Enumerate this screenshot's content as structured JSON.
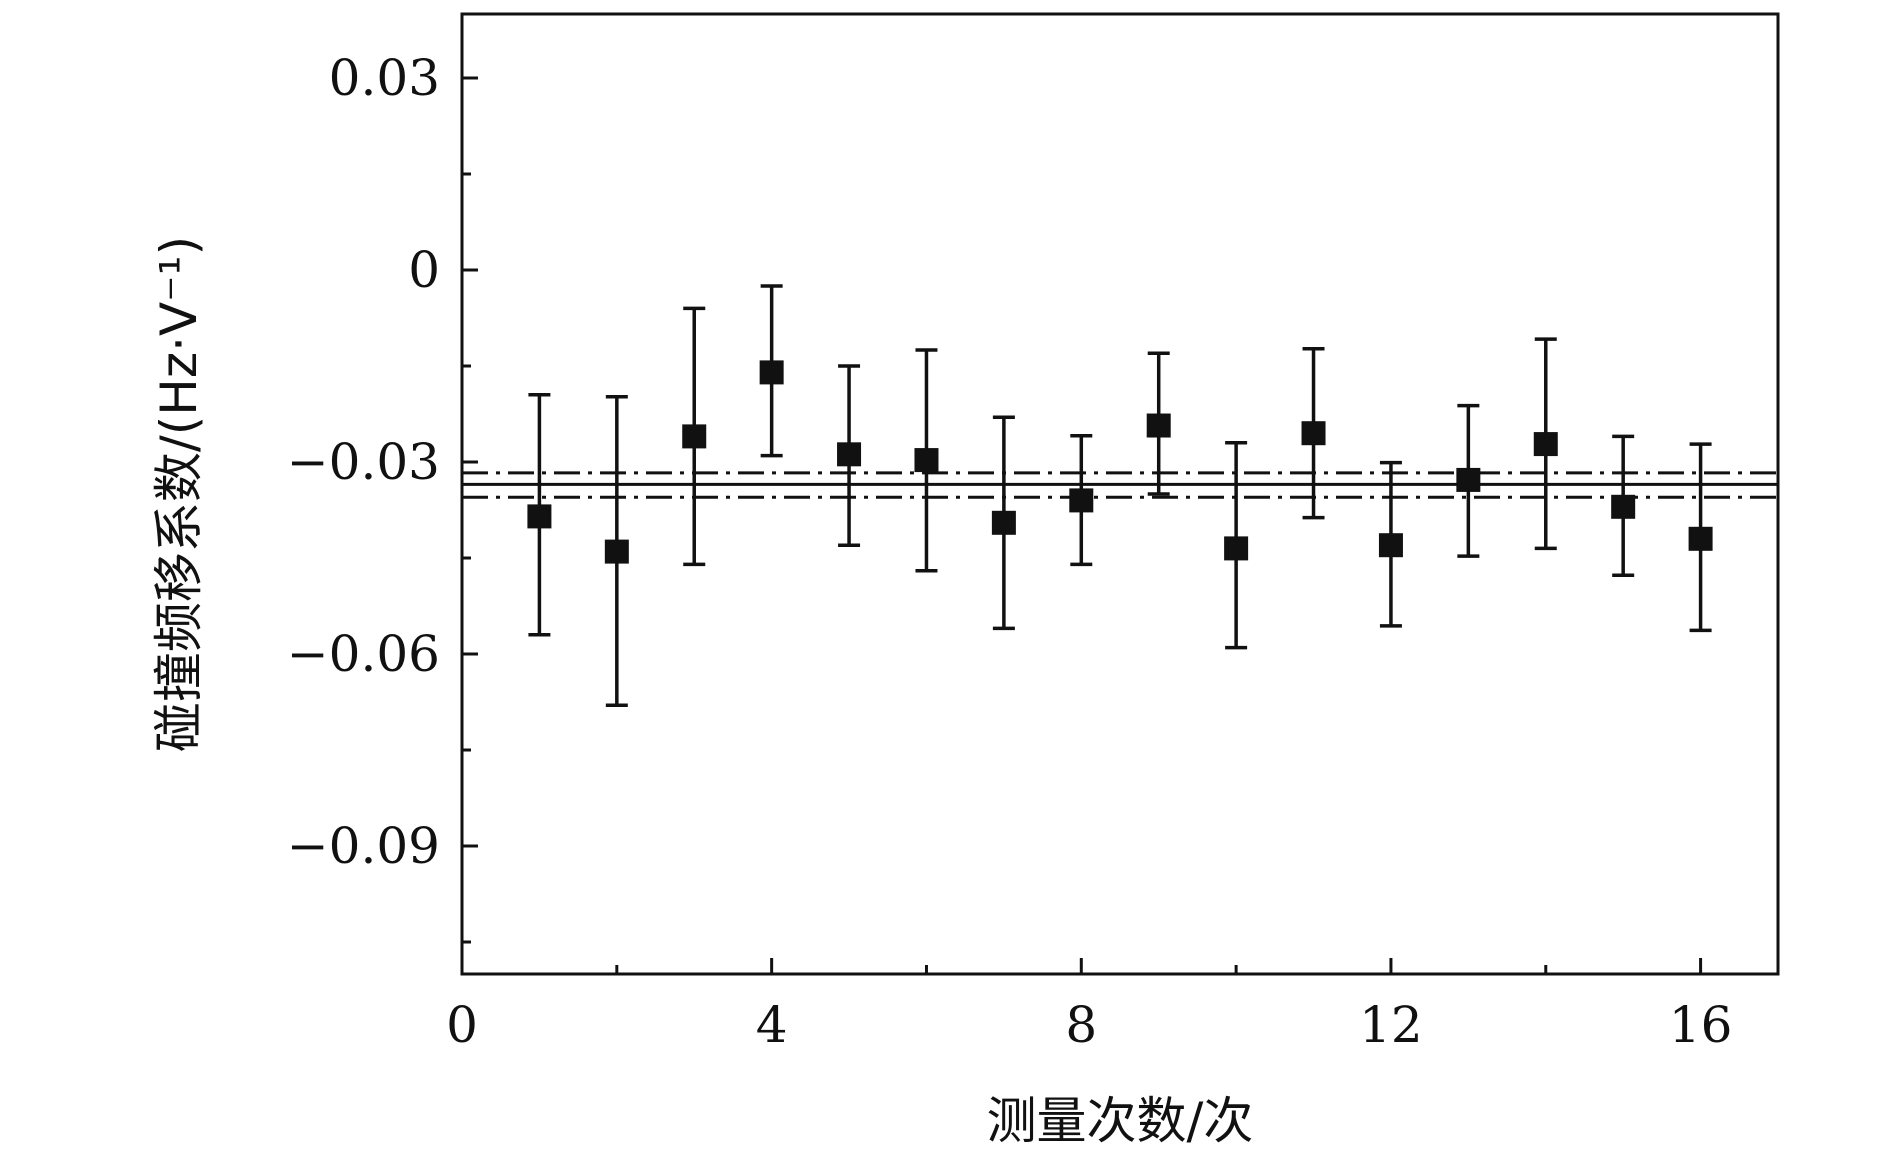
{
  "chart_data": {
    "type": "scatter",
    "xlabel": "测量次数/次",
    "ylabel": "碰撞频移系数/(Hz·V⁻¹)",
    "xlim": [
      0,
      17
    ],
    "ylim": [
      -0.11,
      0.04
    ],
    "x_ticks": [
      0,
      4,
      8,
      12,
      16
    ],
    "x_tick_labels": [
      "0",
      "4",
      "8",
      "12",
      "16"
    ],
    "x_minor_ticks": [
      2,
      6,
      10,
      14
    ],
    "y_ticks": [
      0.03,
      0,
      -0.03,
      -0.06,
      -0.09
    ],
    "y_tick_labels": [
      "0.03",
      "0",
      "−0.03",
      "−0.06",
      "−0.09"
    ],
    "y_minor_ticks": [
      0.015,
      -0.015,
      -0.045,
      -0.075,
      -0.105
    ],
    "grid": false,
    "legend": "none",
    "series": [
      {
        "marker": "square",
        "x": [
          1,
          2,
          3,
          4,
          5,
          6,
          7,
          8,
          9,
          10,
          11,
          12,
          13,
          14,
          15,
          16
        ],
        "y": [
          -0.0385,
          -0.044,
          -0.026,
          -0.016,
          -0.0288,
          -0.0297,
          -0.0395,
          -0.036,
          -0.0243,
          -0.0435,
          -0.0255,
          -0.043,
          -0.0328,
          -0.0272,
          -0.037,
          -0.042
        ],
        "err_low": [
          -0.057,
          -0.068,
          -0.046,
          -0.029,
          -0.043,
          -0.047,
          -0.056,
          -0.046,
          -0.035,
          -0.059,
          -0.0387,
          -0.0556,
          -0.0447,
          -0.0435,
          -0.0477,
          -0.0563
        ],
        "err_high": [
          -0.0195,
          -0.0198,
          -0.006,
          -0.0025,
          -0.015,
          -0.0125,
          -0.023,
          -0.0259,
          -0.013,
          -0.027,
          -0.0123,
          -0.0301,
          -0.0212,
          -0.0108,
          -0.026,
          -0.0272
        ]
      }
    ],
    "reference_lines": [
      {
        "y": -0.0335,
        "style": "solid"
      },
      {
        "y": -0.0317,
        "style": "dashdot"
      },
      {
        "y": -0.0355,
        "style": "dashdot"
      }
    ]
  }
}
